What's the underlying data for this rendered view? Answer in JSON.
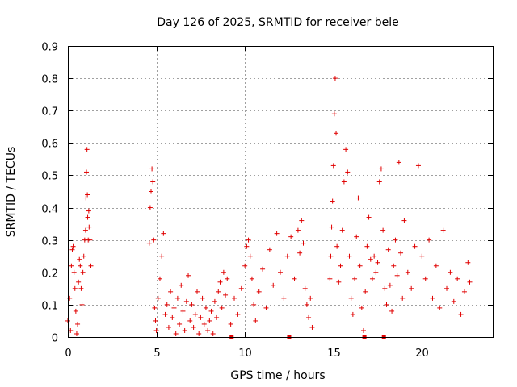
{
  "chart_data": {
    "type": "scatter",
    "title": "Day 126 of 2025, SRMTID for receiver bele",
    "xlabel": "GPS time / hours",
    "ylabel": "SRMTID / TECUs",
    "xlim": [
      0,
      24
    ],
    "ylim": [
      0,
      0.9
    ],
    "xticks": [
      0,
      5,
      10,
      15,
      20
    ],
    "yticks": [
      0,
      0.1,
      0.2,
      0.3,
      0.4,
      0.5,
      0.6,
      0.7,
      0.8,
      0.9
    ],
    "grid": true,
    "marker": "+",
    "color": "#e00000",
    "gap_markers_x": [
      9.25,
      12.5,
      16.75,
      17.85
    ],
    "series": [
      {
        "name": "SRMTID",
        "x": [
          0.0,
          0.1,
          0.15,
          0.2,
          0.25,
          0.3,
          0.35,
          0.4,
          0.45,
          0.5,
          0.55,
          0.6,
          0.65,
          0.7,
          0.75,
          0.8,
          0.85,
          0.9,
          0.95,
          1.0,
          1.02,
          1.05,
          1.08,
          1.1,
          1.12,
          1.15,
          1.18,
          1.2,
          1.25,
          1.3,
          4.6,
          4.65,
          4.7,
          4.75,
          4.8,
          4.85,
          4.9,
          4.95,
          5.0,
          5.1,
          5.2,
          5.3,
          5.4,
          5.5,
          5.6,
          5.7,
          5.8,
          5.9,
          6.0,
          6.1,
          6.2,
          6.3,
          6.4,
          6.5,
          6.6,
          6.7,
          6.8,
          6.9,
          7.0,
          7.1,
          7.2,
          7.3,
          7.4,
          7.5,
          7.6,
          7.7,
          7.8,
          7.9,
          8.0,
          8.1,
          8.2,
          8.3,
          8.4,
          8.5,
          8.6,
          8.7,
          8.8,
          8.9,
          9.0,
          9.2,
          9.4,
          9.6,
          9.8,
          10.0,
          10.1,
          10.2,
          10.3,
          10.4,
          10.5,
          10.6,
          10.8,
          11.0,
          11.2,
          11.4,
          11.6,
          11.8,
          12.0,
          12.2,
          12.4,
          12.6,
          12.8,
          13.0,
          13.1,
          13.2,
          13.3,
          13.4,
          13.5,
          13.6,
          13.7,
          13.8,
          14.8,
          14.85,
          14.9,
          14.95,
          15.0,
          15.05,
          15.1,
          15.15,
          15.2,
          15.3,
          15.4,
          15.5,
          15.6,
          15.7,
          15.8,
          15.9,
          16.0,
          16.1,
          16.2,
          16.3,
          16.4,
          16.5,
          16.6,
          16.7,
          16.8,
          16.9,
          17.0,
          17.1,
          17.2,
          17.3,
          17.4,
          17.5,
          17.6,
          17.7,
          17.8,
          17.9,
          18.0,
          18.1,
          18.2,
          18.3,
          18.4,
          18.5,
          18.6,
          18.7,
          18.8,
          18.9,
          19.0,
          19.2,
          19.4,
          19.6,
          19.8,
          20.0,
          20.2,
          20.4,
          20.6,
          20.8,
          21.0,
          21.2,
          21.4,
          21.6,
          21.8,
          22.0,
          22.2,
          22.4,
          22.6,
          22.7
        ],
        "y": [
          0.05,
          0.12,
          0.02,
          0.22,
          0.27,
          0.28,
          0.2,
          0.15,
          0.08,
          0.01,
          0.04,
          0.17,
          0.24,
          0.22,
          0.15,
          0.1,
          0.2,
          0.25,
          0.3,
          0.33,
          0.43,
          0.51,
          0.58,
          0.44,
          0.37,
          0.3,
          0.39,
          0.34,
          0.3,
          0.22,
          0.29,
          0.4,
          0.45,
          0.52,
          0.48,
          0.3,
          0.09,
          0.05,
          0.02,
          0.12,
          0.18,
          0.25,
          0.32,
          0.07,
          0.1,
          0.03,
          0.14,
          0.06,
          0.09,
          0.01,
          0.12,
          0.04,
          0.16,
          0.08,
          0.02,
          0.11,
          0.19,
          0.05,
          0.1,
          0.03,
          0.07,
          0.14,
          0.01,
          0.06,
          0.12,
          0.04,
          0.09,
          0.02,
          0.05,
          0.08,
          0.01,
          0.11,
          0.06,
          0.14,
          0.17,
          0.09,
          0.2,
          0.13,
          0.18,
          0.04,
          0.12,
          0.07,
          0.15,
          0.22,
          0.28,
          0.3,
          0.25,
          0.18,
          0.1,
          0.05,
          0.14,
          0.21,
          0.09,
          0.27,
          0.16,
          0.32,
          0.2,
          0.12,
          0.25,
          0.31,
          0.18,
          0.33,
          0.26,
          0.36,
          0.29,
          0.15,
          0.1,
          0.06,
          0.12,
          0.03,
          0.18,
          0.25,
          0.34,
          0.42,
          0.53,
          0.69,
          0.8,
          0.63,
          0.28,
          0.17,
          0.22,
          0.33,
          0.48,
          0.58,
          0.51,
          0.25,
          0.12,
          0.07,
          0.18,
          0.31,
          0.43,
          0.22,
          0.09,
          0.02,
          0.14,
          0.28,
          0.37,
          0.24,
          0.18,
          0.25,
          0.2,
          0.23,
          0.48,
          0.52,
          0.33,
          0.15,
          0.1,
          0.27,
          0.16,
          0.08,
          0.22,
          0.3,
          0.19,
          0.54,
          0.26,
          0.12,
          0.36,
          0.2,
          0.15,
          0.28,
          0.53,
          0.25,
          0.18,
          0.3,
          0.12,
          0.22,
          0.09,
          0.33,
          0.15,
          0.2,
          0.11,
          0.18,
          0.07,
          0.14,
          0.23,
          0.17
        ]
      }
    ]
  }
}
